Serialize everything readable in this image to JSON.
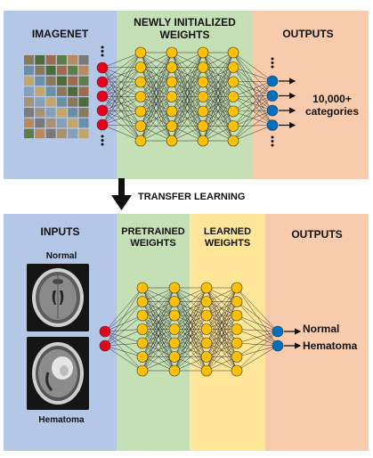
{
  "top": {
    "imagenet_label": "IMAGENET",
    "weights_label": "NEWLY INITIALIZED\nWEIGHTS",
    "outputs_label": "OUTPUTS",
    "categories_label": "10,000+\ncategories"
  },
  "middle": {
    "transfer_label": "TRANSFER LEARNING"
  },
  "bottom": {
    "inputs_label": "INPUTS",
    "pretrained_label": "PRETRAINED\nWEIGHTS",
    "learned_label": "LEARNED\nWEIGHTS",
    "outputs_label": "OUTPUTS",
    "normal_caption": "Normal",
    "hematoma_caption": "Hematoma",
    "output_normal": "Normal",
    "output_hematoma": "Hematoma"
  },
  "colors": {
    "blue_panel": "#b4c7e7",
    "green_panel": "#c5e0b4",
    "yellow_panel": "#ffe699",
    "orange_panel": "#f8cbad",
    "input_node": "#e8001c",
    "hidden_node": "#ffc000",
    "output_node": "#0070c0",
    "arrow": "#111111"
  },
  "icons": [
    "mri-normal-scan",
    "mri-hematoma-scan",
    "imagenet-thumbnail-grid",
    "transfer-down-arrow"
  ]
}
